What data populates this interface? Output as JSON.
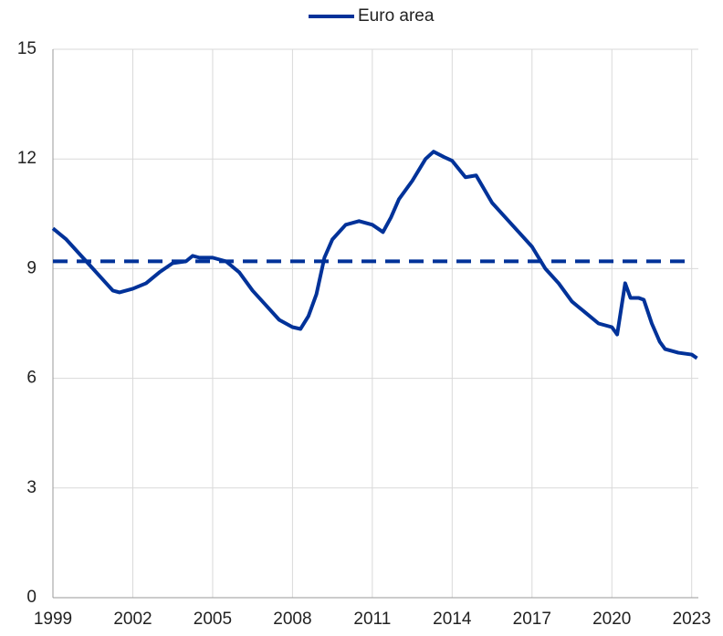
{
  "chart_data": {
    "type": "line",
    "x": [
      1999.0,
      1999.5,
      2000.0,
      2000.5,
      2001.0,
      2001.25,
      2001.5,
      2002.0,
      2002.5,
      2003.0,
      2003.5,
      2004.0,
      2004.25,
      2004.5,
      2005.0,
      2005.5,
      2006.0,
      2006.5,
      2007.0,
      2007.5,
      2008.0,
      2008.3,
      2008.6,
      2008.9,
      2009.2,
      2009.5,
      2010.0,
      2010.5,
      2011.0,
      2011.4,
      2011.7,
      2012.0,
      2012.5,
      2013.0,
      2013.3,
      2013.7,
      2014.0,
      2014.5,
      2014.9,
      2015.5,
      2016.0,
      2016.5,
      2017.0,
      2017.5,
      2018.0,
      2018.5,
      2019.0,
      2019.5,
      2020.0,
      2020.2,
      2020.5,
      2020.7,
      2021.0,
      2021.2,
      2021.5,
      2021.8,
      2022.0,
      2022.5,
      2023.0,
      2023.2
    ],
    "series": [
      {
        "name": "Euro area",
        "color": "#003299",
        "values": [
          10.1,
          9.8,
          9.4,
          9.0,
          8.6,
          8.4,
          8.35,
          8.45,
          8.6,
          8.9,
          9.15,
          9.2,
          9.35,
          9.3,
          9.3,
          9.2,
          8.9,
          8.4,
          8.0,
          7.6,
          7.4,
          7.35,
          7.7,
          8.3,
          9.3,
          9.8,
          10.2,
          10.3,
          10.2,
          10.0,
          10.4,
          10.9,
          11.4,
          12.0,
          12.2,
          12.05,
          11.95,
          11.5,
          11.55,
          10.8,
          10.4,
          10.0,
          9.6,
          9.0,
          8.6,
          8.1,
          7.8,
          7.5,
          7.4,
          7.2,
          8.6,
          8.2,
          8.2,
          8.15,
          7.5,
          7.0,
          6.8,
          6.7,
          6.65,
          6.55
        ]
      }
    ],
    "hline": {
      "value": 9.2,
      "color": "#003299",
      "dashed": true
    },
    "xlim": [
      1999,
      2023.25
    ],
    "xticks": [
      1999,
      2002,
      2005,
      2008,
      2011,
      2014,
      2017,
      2020,
      2023
    ],
    "ylim": [
      0,
      15
    ],
    "yticks": [
      0,
      3,
      6,
      9,
      12,
      15
    ],
    "grid": true,
    "legend": "top"
  }
}
